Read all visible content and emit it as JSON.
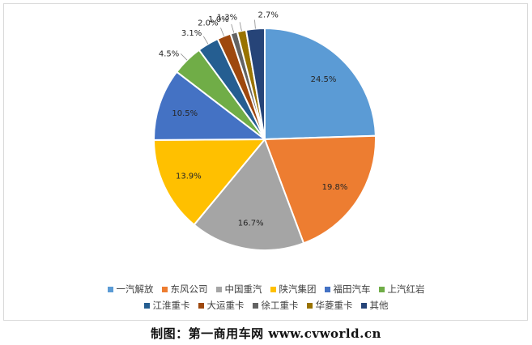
{
  "chart_data": {
    "type": "pie",
    "title": "",
    "categories": [
      "一汽解放",
      "东风公司",
      "中国重汽",
      "陕汽集团",
      "福田汽车",
      "上汽红岩",
      "江淮重卡",
      "大运重卡",
      "徐工重卡",
      "华菱重卡",
      "其他"
    ],
    "values": [
      24.5,
      19.8,
      16.7,
      13.9,
      10.5,
      4.5,
      3.1,
      2.0,
      1.0,
      1.3,
      2.7
    ],
    "labels": [
      "24.5%",
      "19.8%",
      "16.7%",
      "13.9%",
      "10.5%",
      "4.5%",
      "3.1%",
      "2.0%",
      "1.0%",
      "1.3%",
      "2.7%"
    ],
    "colors": [
      "#5B9BD5",
      "#ED7D31",
      "#A5A5A5",
      "#FFC000",
      "#4472C4",
      "#70AD47",
      "#255E91",
      "#9E480E",
      "#636363",
      "#997300",
      "#264478"
    ],
    "legend_position": "bottom",
    "start_angle_deg": 0,
    "direction": "clockwise"
  },
  "credit": "制图：第一商用车网 www.cvworld.cn"
}
